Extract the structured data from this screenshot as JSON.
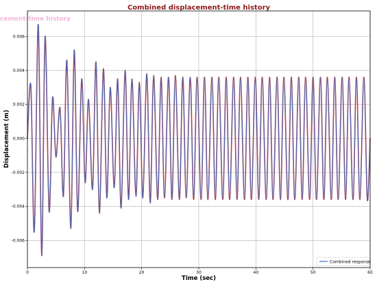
{
  "chart_data": {
    "type": "line",
    "title": "Combined displacement-time history",
    "watermark": "cement-time history",
    "xlabel": "Time (sec)",
    "ylabel": "Displacement (m)",
    "xlim": [
      0,
      60
    ],
    "ylim": [
      -0.0076,
      0.0075
    ],
    "xticks": [
      0,
      10,
      20,
      30,
      40,
      50,
      60
    ],
    "yticks": [
      -0.006,
      -0.004,
      -0.002,
      0.0,
      0.002,
      0.004,
      0.006
    ],
    "ytick_labels": [
      "-0.006",
      "-0.004",
      "-0.002",
      "0.000",
      "0.002",
      "0.004",
      "0.006"
    ],
    "grid": true,
    "legend_position": "bottom-right",
    "colors": {
      "line": "#3b6fc4",
      "overlay": "#d12a2a",
      "grid": "#b0b0b0"
    },
    "series": [
      {
        "name": "Combined response",
        "t": [
          0.0,
          0.6,
          1.2,
          1.9,
          2.5,
          3.1,
          3.8,
          4.4,
          5.0,
          5.7,
          6.3,
          6.9,
          7.6,
          8.2,
          8.8,
          9.5,
          10.1,
          10.7,
          11.4,
          12.0,
          12.6,
          13.3,
          13.9,
          14.5,
          15.2,
          15.8,
          16.4,
          17.1,
          17.7,
          18.3,
          19.0,
          19.6,
          20.2,
          20.9,
          21.5,
          22.1,
          22.8,
          23.4,
          24.0,
          24.7,
          25.3,
          25.9,
          26.6,
          27.2,
          27.8,
          28.5,
          29.1,
          29.7,
          30.4,
          31.0,
          31.6,
          32.3,
          32.9,
          33.5,
          34.2,
          34.8,
          35.4,
          36.1,
          36.7,
          37.3,
          38.0,
          38.6,
          39.2,
          39.9,
          40.5,
          41.1,
          41.8,
          42.4,
          43.0,
          43.7,
          44.3,
          44.9,
          45.6,
          46.2,
          46.8,
          47.5,
          48.1,
          48.7,
          49.4,
          50.0,
          50.6,
          51.3,
          51.9,
          52.5,
          53.2,
          53.8,
          54.4,
          55.1,
          55.7,
          56.3,
          57.0,
          57.6,
          58.2,
          58.9,
          59.5,
          60.0
        ],
        "displacement": [
          0.0,
          0.0031,
          -0.0055,
          0.0067,
          -0.0069,
          0.006,
          -0.0043,
          0.0024,
          -0.0011,
          0.0018,
          -0.0034,
          0.0046,
          -0.0053,
          0.0052,
          -0.0043,
          0.0035,
          -0.0026,
          0.0023,
          -0.003,
          0.0045,
          -0.0044,
          0.0041,
          -0.0035,
          0.003,
          -0.0029,
          0.0035,
          -0.0041,
          0.004,
          -0.0036,
          0.0035,
          -0.0034,
          0.0033,
          -0.0035,
          0.0038,
          -0.0038,
          0.0037,
          -0.0036,
          0.0036,
          -0.0035,
          0.0036,
          -0.0036,
          0.0037,
          -0.0036,
          0.0036,
          -0.0035,
          0.0036,
          -0.0036,
          0.0036,
          -0.0036,
          0.0036,
          -0.0036,
          0.0036,
          -0.0036,
          0.0036,
          -0.0036,
          0.0036,
          -0.0036,
          0.0036,
          -0.0036,
          0.0036,
          -0.0036,
          0.0036,
          -0.0036,
          0.0036,
          -0.0036,
          0.0036,
          -0.0036,
          0.0036,
          -0.0036,
          0.0036,
          -0.0036,
          0.0036,
          -0.0036,
          0.0036,
          -0.0036,
          0.0036,
          -0.0036,
          0.0036,
          -0.0036,
          0.0036,
          -0.0036,
          0.0036,
          -0.0036,
          0.0036,
          -0.0036,
          0.0036,
          -0.0036,
          0.0036,
          -0.0036,
          0.0036,
          -0.0036,
          0.0036,
          -0.0036,
          0.0036,
          -0.0036,
          0.0
        ]
      }
    ]
  }
}
